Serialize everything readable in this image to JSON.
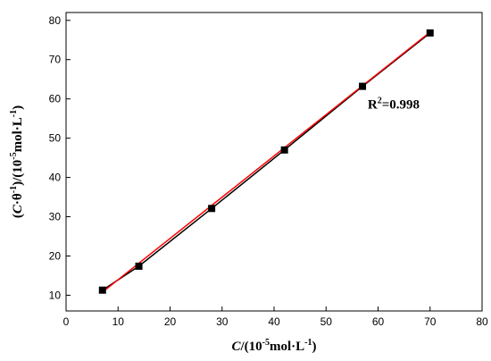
{
  "chart_data": {
    "type": "scatter",
    "title": "",
    "x": [
      7,
      14,
      28,
      42,
      57,
      70
    ],
    "series": [
      {
        "values": [
          11.3,
          17.4,
          32.1,
          47.0,
          63.2,
          76.8
        ]
      }
    ],
    "fit_line": {
      "x": [
        7,
        70
      ],
      "y": [
        10.8,
        77.0
      ],
      "color": "#ff0000"
    },
    "marker_color": "#000000",
    "xlim": [
      0,
      80
    ],
    "ylim": [
      6,
      82
    ],
    "xticks": [
      0,
      10,
      20,
      30,
      40,
      50,
      60,
      70,
      80
    ],
    "yticks": [
      10,
      20,
      30,
      40,
      50,
      60,
      70,
      80
    ],
    "xlabel": {
      "italic": "C",
      "p1": "/(10",
      "sup1": "-5",
      "p2": "mol·L",
      "sup2": "-1",
      "p3": ")"
    },
    "ylabel": {
      "p1": "(",
      "italic": "C",
      "p2": "·θ",
      "sup1": "-1",
      "p3": ")/(10",
      "sup2": "-5",
      "p4": "mol·L",
      "sup3": "-1",
      "p5": ")"
    },
    "annotation": {
      "base": "R",
      "sup": "2",
      "rest": "=0.998",
      "x": 58,
      "y": 57.5
    },
    "grid": false,
    "legend": "none"
  }
}
